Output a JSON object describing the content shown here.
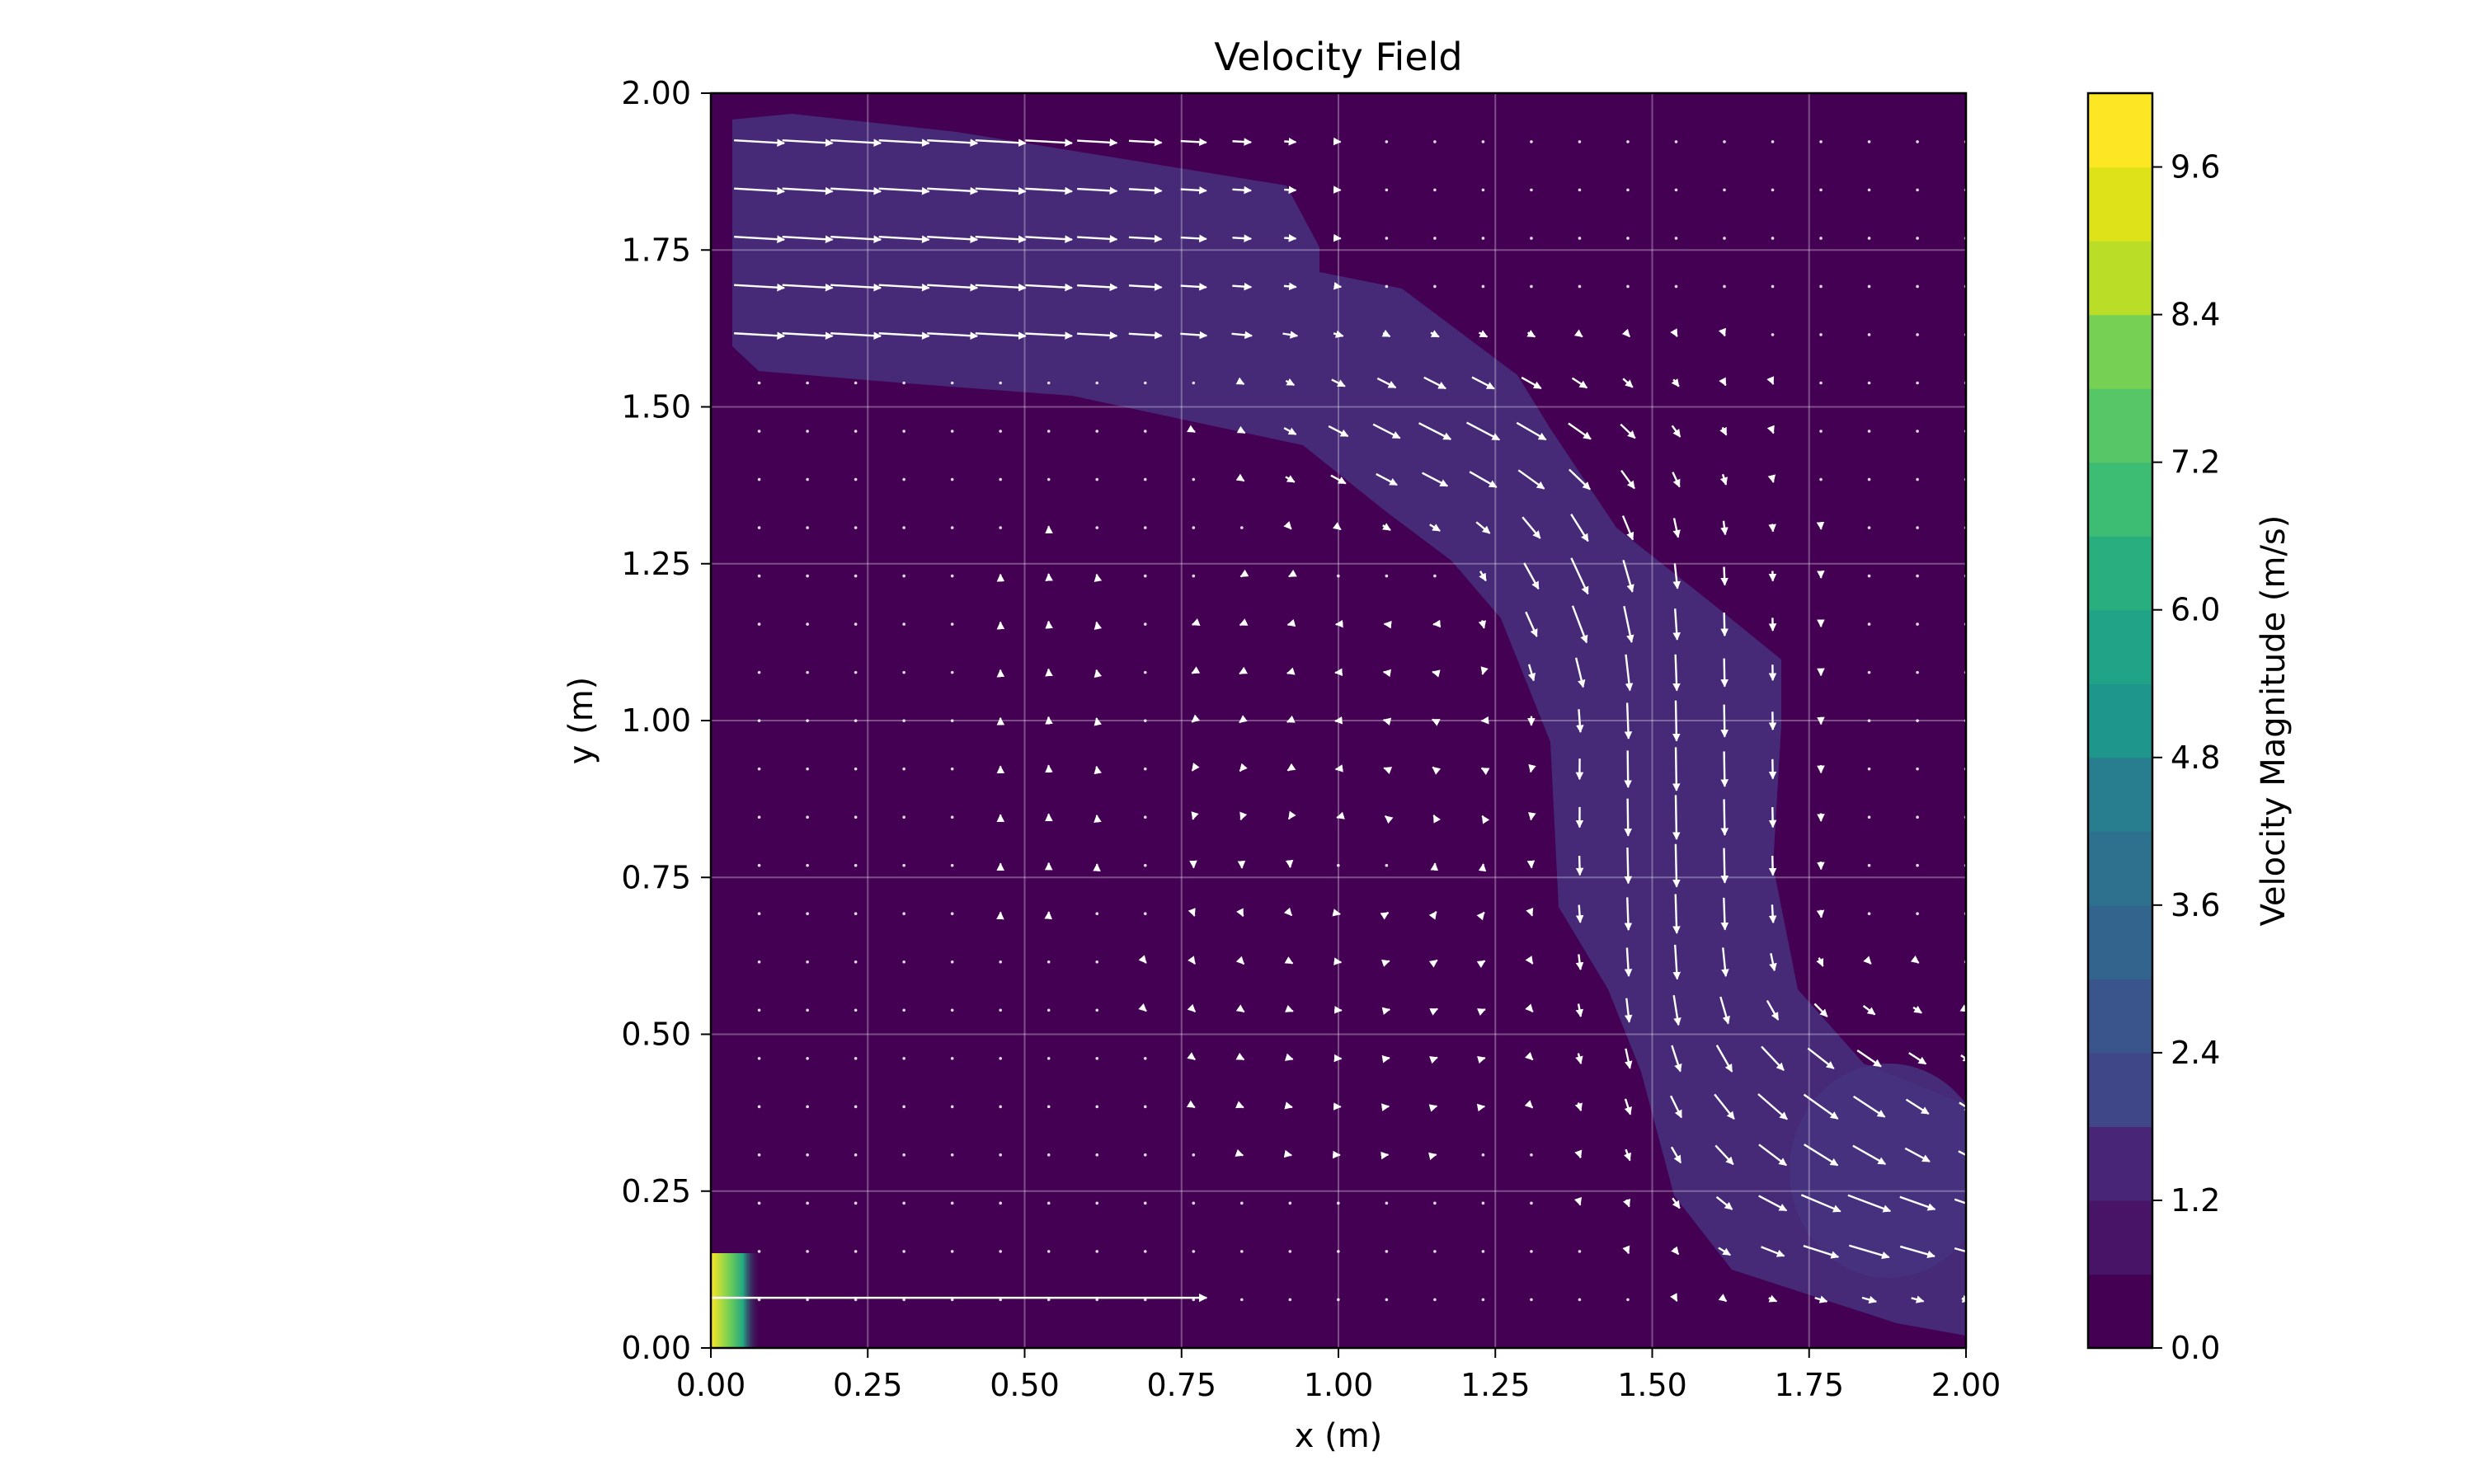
{
  "chart_data": {
    "type": "heatmap",
    "subtype": "contourf-with-quiver",
    "title": "Velocity Field",
    "xlabel": "x (m)",
    "ylabel": "y (m)",
    "xlim": [
      0.0,
      2.0
    ],
    "ylim": [
      0.0,
      2.0
    ],
    "x_ticks": [
      "0.00",
      "0.25",
      "0.50",
      "0.75",
      "1.00",
      "1.25",
      "1.50",
      "1.75",
      "2.00"
    ],
    "y_ticks": [
      "0.00",
      "0.25",
      "0.50",
      "0.75",
      "1.00",
      "1.25",
      "1.50",
      "1.75",
      "2.00"
    ],
    "grid": true,
    "colormap": "viridis",
    "colorbar": {
      "label": "Velocity Magnitude (m/s)",
      "range": [
        0.0,
        10.2
      ],
      "ticks": [
        "0.0",
        "1.2",
        "2.4",
        "3.6",
        "4.8",
        "6.0",
        "7.2",
        "8.4",
        "9.6"
      ],
      "levels": 17
    },
    "colors": {
      "background": "#440154",
      "jet_band": "#472d7b",
      "band_edge": "#46337f",
      "hotspot": "#fde725",
      "arrow": "#ffffff",
      "grid": "#ffffff"
    },
    "magnitude_regions": [
      {
        "name": "top jet",
        "approx_velocity": 1.0,
        "x_range": [
          0.06,
          0.95
        ],
        "y_range": [
          1.55,
          1.96
        ]
      },
      {
        "name": "downward channel",
        "approx_velocity": 0.9,
        "x_range": [
          1.3,
          1.72
        ],
        "y_range": [
          0.3,
          1.25
        ]
      },
      {
        "name": "bottom-right outflow",
        "approx_velocity": 1.2,
        "x_range": [
          1.7,
          2.0
        ],
        "y_range": [
          0.05,
          0.45
        ]
      },
      {
        "name": "inlet hotspot",
        "approx_velocity": 9.8,
        "x_range": [
          0.0,
          0.07
        ],
        "y_range": [
          0.0,
          0.15
        ]
      }
    ],
    "quiver": {
      "grid_x": {
        "start": 0.077,
        "step": 0.0769,
        "count": 26
      },
      "grid_y": {
        "start": 0.077,
        "step": 0.0769,
        "count": 25
      },
      "flow_description": "jet enters along the top-left moving right, curves downward near x=1.3-1.7, exits toward the bottom-right; recirculation vortex around x=0.8-1.2, y=0.5-1.1; long horizontal arrow from inlet at y≈0.08"
    }
  }
}
